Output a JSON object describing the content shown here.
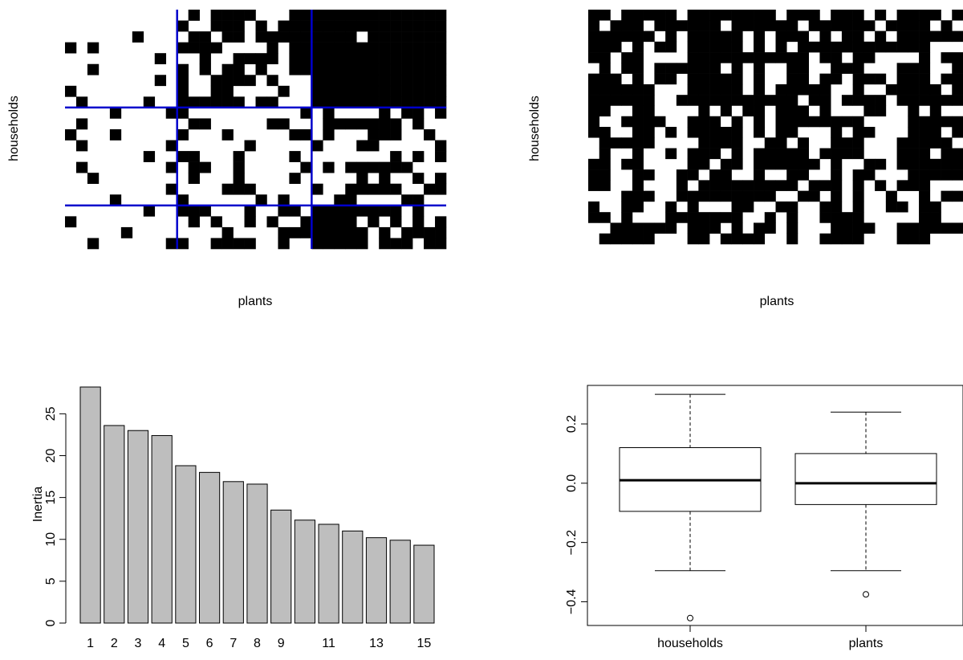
{
  "chart_data": [
    {
      "type": "heatmap",
      "panel": "top-left",
      "xlabel": "plants",
      "ylabel": "households",
      "grid": false,
      "block_boundaries": {
        "color": "#0000cc",
        "vertical_cols": [
          10,
          22
        ],
        "horizontal_rows": [
          9,
          18
        ],
        "n_cols": 34,
        "n_rows": 22
      },
      "block_density": [
        [
          0.12,
          0.65,
          0.98
        ],
        [
          0.1,
          0.22,
          0.45
        ],
        [
          0.18,
          0.55,
          0.62
        ]
      ],
      "cell_colors": {
        "filled": "#000000",
        "empty": "#ffffff"
      }
    },
    {
      "type": "heatmap",
      "panel": "top-right",
      "xlabel": "plants",
      "ylabel": "households",
      "grid": false,
      "n_cols": 34,
      "n_rows": 22,
      "fill_density": 0.5,
      "cell_colors": {
        "filled": "#000000",
        "empty": "#ffffff"
      }
    },
    {
      "type": "bar",
      "panel": "bottom-left",
      "categories": [
        "1",
        "2",
        "3",
        "4",
        "5",
        "6",
        "7",
        "8",
        "9",
        "10",
        "11",
        "12",
        "13",
        "14",
        "15"
      ],
      "tick_labels_shown": [
        "1",
        "2",
        "3",
        "4",
        "5",
        "6",
        "7",
        "8",
        "9",
        "11",
        "13",
        "15"
      ],
      "values": [
        28.2,
        23.6,
        23.0,
        22.4,
        18.8,
        18.0,
        16.9,
        16.6,
        13.5,
        12.3,
        11.8,
        11.0,
        10.2,
        9.9,
        9.3
      ],
      "title": "",
      "xlabel": "",
      "ylabel": "Inertia",
      "ylim": [
        0,
        28.2
      ],
      "yticks": [
        0,
        5,
        10,
        15,
        20,
        25
      ],
      "bar_color": "#bebebe"
    },
    {
      "type": "boxplot",
      "panel": "bottom-right",
      "categories": [
        "households",
        "plants"
      ],
      "boxes": [
        {
          "name": "households",
          "whisker_low": -0.295,
          "q1": -0.095,
          "median": 0.01,
          "q3": 0.12,
          "whisker_high": 0.3,
          "outliers": [
            -0.455
          ]
        },
        {
          "name": "plants",
          "whisker_low": -0.295,
          "q1": -0.072,
          "median": 0.0,
          "q3": 0.1,
          "whisker_high": 0.24,
          "outliers": [
            -0.375
          ]
        }
      ],
      "ylim": [
        -0.48,
        0.33
      ],
      "yticks": [
        "0.2",
        "0.0",
        "−0.2",
        "−0.4"
      ],
      "ytick_values": [
        0.2,
        0.0,
        -0.2,
        -0.4
      ],
      "title": "",
      "xlabel": "",
      "ylabel": ""
    }
  ]
}
